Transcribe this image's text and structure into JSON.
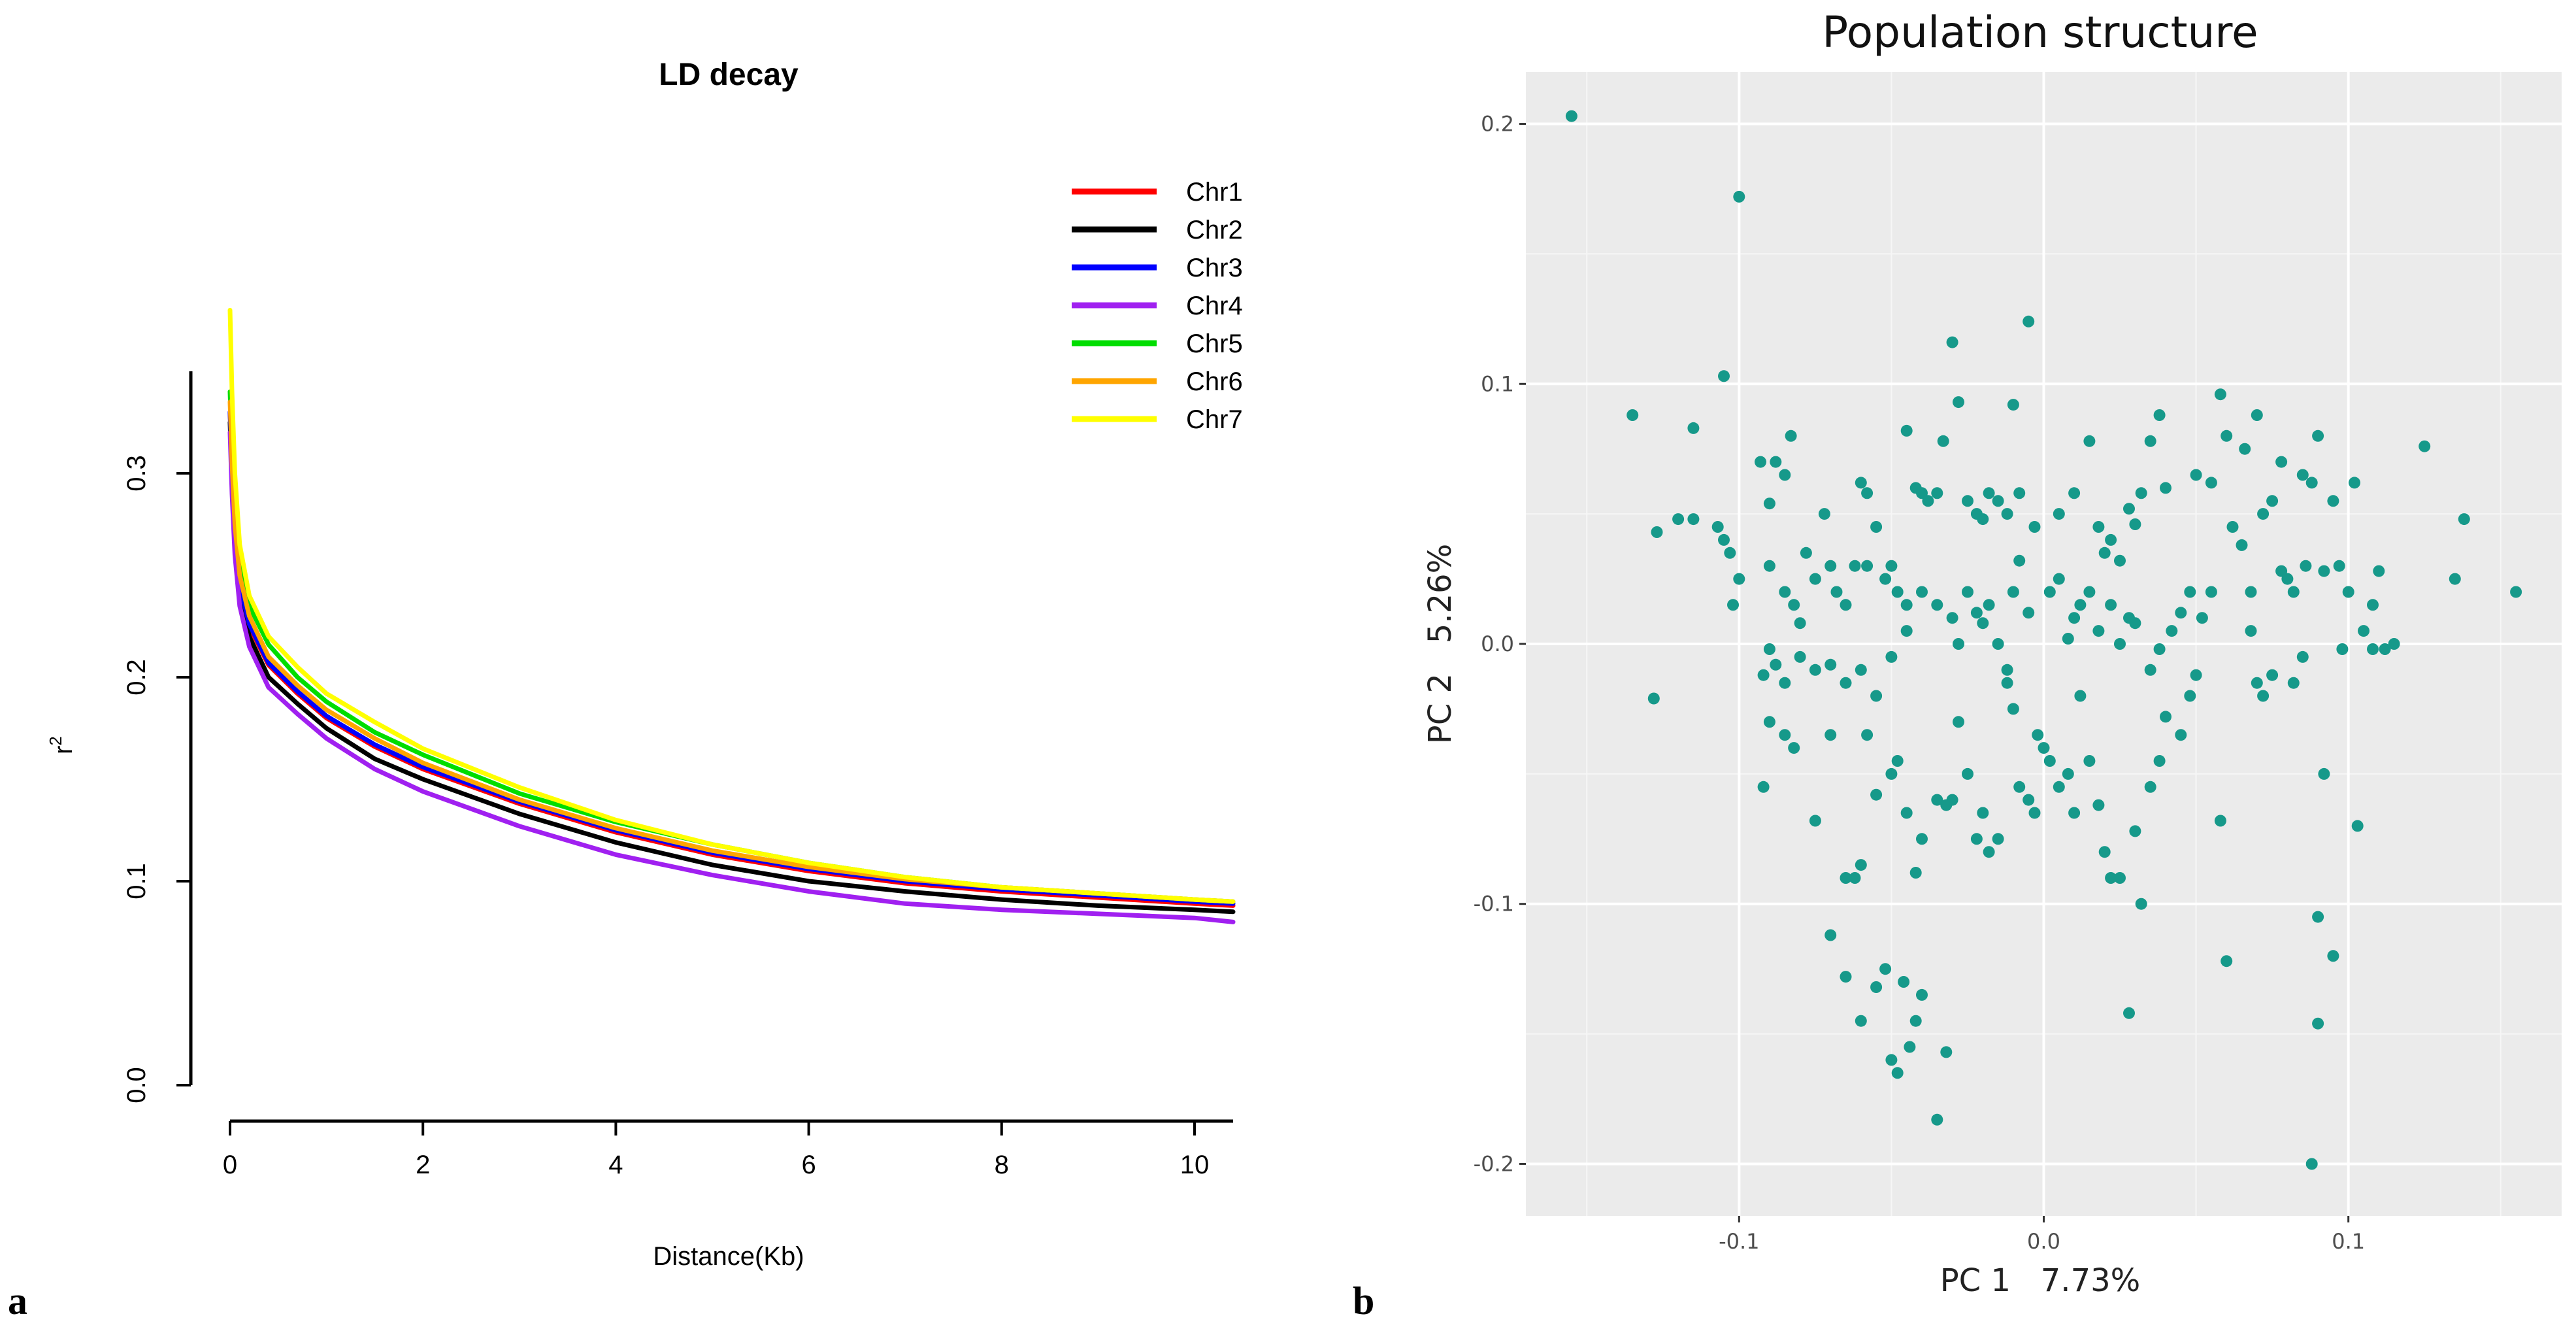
{
  "panel_labels": {
    "a": "a",
    "b": "b"
  },
  "chart_data": [
    {
      "type": "line",
      "title": "LD decay",
      "xlabel": "Distance(Kb)",
      "ylabel": "r",
      "ylabel_superscript": "2",
      "xlim": [
        0,
        10.4
      ],
      "ylim": [
        0,
        0.35
      ],
      "xticks": [
        0,
        2,
        4,
        6,
        8,
        10
      ],
      "xtick_labels": [
        "0",
        "2",
        "4",
        "6",
        "8",
        "10"
      ],
      "yticks": [
        0.0,
        0.1,
        0.2,
        0.3
      ],
      "ytick_labels": [
        "0.0",
        "0.1",
        "0.2",
        "0.3"
      ],
      "grid": false,
      "legend_position": "top-right",
      "x": [
        0,
        0.02,
        0.05,
        0.1,
        0.2,
        0.4,
        0.7,
        1,
        1.5,
        2,
        3,
        4,
        5,
        6,
        7,
        8,
        9,
        10,
        10.4
      ],
      "series": [
        {
          "name": "Chr1",
          "color": "#ff0000",
          "values": [
            0.33,
            0.3,
            0.27,
            0.245,
            0.225,
            0.206,
            0.192,
            0.18,
            0.166,
            0.155,
            0.138,
            0.124,
            0.113,
            0.105,
            0.099,
            0.095,
            0.092,
            0.089,
            0.088
          ]
        },
        {
          "name": "Chr2",
          "color": "#000000",
          "values": [
            0.325,
            0.295,
            0.265,
            0.24,
            0.22,
            0.2,
            0.187,
            0.175,
            0.16,
            0.15,
            0.133,
            0.119,
            0.108,
            0.1,
            0.095,
            0.091,
            0.088,
            0.086,
            0.085
          ]
        },
        {
          "name": "Chr3",
          "color": "#0000ff",
          "values": [
            0.33,
            0.3,
            0.27,
            0.245,
            0.226,
            0.207,
            0.193,
            0.181,
            0.167,
            0.156,
            0.139,
            0.125,
            0.114,
            0.106,
            0.1,
            0.096,
            0.093,
            0.09,
            0.089
          ]
        },
        {
          "name": "Chr4",
          "color": "#a020f0",
          "values": [
            0.32,
            0.29,
            0.26,
            0.235,
            0.215,
            0.195,
            0.182,
            0.17,
            0.155,
            0.144,
            0.127,
            0.113,
            0.103,
            0.095,
            0.089,
            0.086,
            0.084,
            0.082,
            0.08
          ]
        },
        {
          "name": "Chr5",
          "color": "#00dd00",
          "values": [
            0.34,
            0.31,
            0.28,
            0.255,
            0.235,
            0.216,
            0.2,
            0.188,
            0.173,
            0.162,
            0.143,
            0.129,
            0.118,
            0.109,
            0.102,
            0.097,
            0.094,
            0.091,
            0.09
          ]
        },
        {
          "name": "Chr6",
          "color": "#ffa500",
          "values": [
            0.335,
            0.305,
            0.275,
            0.25,
            0.23,
            0.21,
            0.196,
            0.184,
            0.17,
            0.158,
            0.14,
            0.126,
            0.115,
            0.107,
            0.101,
            0.097,
            0.094,
            0.091,
            0.09
          ]
        },
        {
          "name": "Chr7",
          "color": "#ffff00",
          "values": [
            0.38,
            0.34,
            0.3,
            0.265,
            0.24,
            0.22,
            0.205,
            0.192,
            0.178,
            0.165,
            0.146,
            0.13,
            0.118,
            0.109,
            0.102,
            0.097,
            0.094,
            0.091,
            0.09
          ]
        }
      ]
    },
    {
      "type": "scatter",
      "title": "Population structure",
      "xlabel": "PC 1   7.73%",
      "ylabel": "PC 2   5.26%",
      "xlim": [
        -0.17,
        0.17
      ],
      "ylim": [
        -0.22,
        0.22
      ],
      "xticks": [
        -0.1,
        0.0,
        0.1
      ],
      "xtick_labels": [
        "-0.1",
        "0.0",
        "0.1"
      ],
      "yticks": [
        -0.2,
        -0.1,
        0.0,
        0.1,
        0.2
      ],
      "ytick_labels": [
        "-0.2",
        "-0.1",
        "0.0",
        "0.1",
        "0.2"
      ],
      "grid": true,
      "point_color": "#16998a",
      "background": "#ebebeb",
      "points": [
        [
          -0.155,
          0.203
        ],
        [
          -0.1,
          0.172
        ],
        [
          -0.135,
          0.088
        ],
        [
          -0.115,
          0.083
        ],
        [
          -0.105,
          0.103
        ],
        [
          -0.127,
          0.043
        ],
        [
          -0.12,
          0.048
        ],
        [
          -0.115,
          0.048
        ],
        [
          -0.107,
          0.045
        ],
        [
          -0.105,
          0.04
        ],
        [
          -0.103,
          0.035
        ],
        [
          -0.102,
          0.015
        ],
        [
          -0.1,
          0.025
        ],
        [
          -0.128,
          -0.021
        ],
        [
          -0.093,
          0.07
        ],
        [
          -0.088,
          0.07
        ],
        [
          -0.085,
          0.065
        ],
        [
          -0.083,
          0.08
        ],
        [
          -0.09,
          0.054
        ],
        [
          -0.09,
          0.03
        ],
        [
          -0.085,
          0.02
        ],
        [
          -0.082,
          0.015
        ],
        [
          -0.08,
          0.008
        ],
        [
          -0.078,
          0.035
        ],
        [
          -0.075,
          0.025
        ],
        [
          -0.072,
          0.05
        ],
        [
          -0.07,
          0.03
        ],
        [
          -0.068,
          0.02
        ],
        [
          -0.065,
          0.015
        ],
        [
          -0.062,
          0.03
        ],
        [
          -0.06,
          0.062
        ],
        [
          -0.058,
          0.058
        ],
        [
          -0.055,
          0.045
        ],
        [
          -0.058,
          0.03
        ],
        [
          -0.052,
          0.025
        ],
        [
          -0.05,
          0.03
        ],
        [
          -0.048,
          0.02
        ],
        [
          -0.045,
          0.015
        ],
        [
          -0.09,
          -0.002
        ],
        [
          -0.092,
          -0.012
        ],
        [
          -0.088,
          -0.008
        ],
        [
          -0.085,
          -0.015
        ],
        [
          -0.08,
          -0.005
        ],
        [
          -0.075,
          -0.01
        ],
        [
          -0.07,
          -0.008
        ],
        [
          -0.065,
          -0.015
        ],
        [
          -0.06,
          -0.01
        ],
        [
          -0.055,
          -0.02
        ],
        [
          -0.05,
          -0.005
        ],
        [
          -0.045,
          0.005
        ],
        [
          -0.092,
          -0.055
        ],
        [
          -0.09,
          -0.03
        ],
        [
          -0.085,
          -0.035
        ],
        [
          -0.082,
          -0.04
        ],
        [
          -0.075,
          -0.068
        ],
        [
          -0.07,
          -0.035
        ],
        [
          -0.065,
          -0.09
        ],
        [
          -0.062,
          -0.09
        ],
        [
          -0.06,
          -0.085
        ],
        [
          -0.058,
          -0.035
        ],
        [
          -0.055,
          -0.058
        ],
        [
          -0.05,
          -0.05
        ],
        [
          -0.048,
          -0.045
        ],
        [
          -0.045,
          -0.065
        ],
        [
          -0.042,
          -0.088
        ],
        [
          -0.04,
          -0.075
        ],
        [
          -0.07,
          -0.112
        ],
        [
          -0.065,
          -0.128
        ],
        [
          -0.06,
          -0.145
        ],
        [
          -0.055,
          -0.132
        ],
        [
          -0.052,
          -0.125
        ],
        [
          -0.05,
          -0.16
        ],
        [
          -0.048,
          -0.165
        ],
        [
          -0.046,
          -0.13
        ],
        [
          -0.044,
          -0.155
        ],
        [
          -0.042,
          -0.145
        ],
        [
          -0.04,
          -0.135
        ],
        [
          -0.035,
          -0.183
        ],
        [
          -0.032,
          -0.157
        ],
        [
          -0.045,
          0.082
        ],
        [
          -0.042,
          0.06
        ],
        [
          -0.04,
          0.058
        ],
        [
          -0.038,
          0.055
        ],
        [
          -0.035,
          0.058
        ],
        [
          -0.033,
          0.078
        ],
        [
          -0.03,
          0.116
        ],
        [
          -0.028,
          0.093
        ],
        [
          -0.025,
          0.055
        ],
        [
          -0.022,
          0.05
        ],
        [
          -0.02,
          0.048
        ],
        [
          -0.018,
          0.058
        ],
        [
          -0.015,
          0.055
        ],
        [
          -0.012,
          0.05
        ],
        [
          -0.01,
          0.092
        ],
        [
          -0.008,
          0.058
        ],
        [
          -0.005,
          0.124
        ],
        [
          -0.003,
          0.045
        ],
        [
          -0.04,
          0.02
        ],
        [
          -0.035,
          0.015
        ],
        [
          -0.03,
          0.01
        ],
        [
          -0.028,
          0.0
        ],
        [
          -0.025,
          0.02
        ],
        [
          -0.022,
          0.012
        ],
        [
          -0.02,
          0.008
        ],
        [
          -0.018,
          0.015
        ],
        [
          -0.015,
          0.0
        ],
        [
          -0.012,
          -0.01
        ],
        [
          -0.01,
          0.02
        ],
        [
          -0.008,
          0.032
        ],
        [
          -0.035,
          -0.06
        ],
        [
          -0.032,
          -0.062
        ],
        [
          -0.03,
          -0.06
        ],
        [
          -0.028,
          -0.03
        ],
        [
          -0.025,
          -0.05
        ],
        [
          -0.022,
          -0.075
        ],
        [
          -0.02,
          -0.065
        ],
        [
          -0.018,
          -0.08
        ],
        [
          -0.015,
          -0.075
        ],
        [
          -0.012,
          -0.015
        ],
        [
          -0.01,
          -0.025
        ],
        [
          -0.008,
          -0.055
        ],
        [
          -0.005,
          -0.06
        ],
        [
          -0.003,
          -0.065
        ],
        [
          -0.002,
          -0.035
        ],
        [
          0.0,
          -0.04
        ],
        [
          0.002,
          -0.045
        ],
        [
          0.005,
          -0.055
        ],
        [
          0.008,
          -0.05
        ],
        [
          0.01,
          -0.065
        ],
        [
          -0.005,
          0.012
        ],
        [
          0.002,
          0.02
        ],
        [
          0.005,
          0.025
        ],
        [
          0.008,
          0.002
        ],
        [
          0.01,
          0.01
        ],
        [
          0.012,
          0.015
        ],
        [
          0.015,
          0.02
        ],
        [
          0.018,
          0.005
        ],
        [
          0.02,
          0.035
        ],
        [
          0.022,
          0.015
        ],
        [
          0.025,
          0.0
        ],
        [
          0.028,
          0.01
        ],
        [
          0.03,
          0.008
        ],
        [
          0.005,
          0.05
        ],
        [
          0.01,
          0.058
        ],
        [
          0.015,
          0.078
        ],
        [
          0.018,
          0.045
        ],
        [
          0.022,
          0.04
        ],
        [
          0.025,
          0.032
        ],
        [
          0.028,
          0.052
        ],
        [
          0.03,
          0.046
        ],
        [
          0.032,
          0.058
        ],
        [
          0.035,
          0.078
        ],
        [
          0.038,
          0.088
        ],
        [
          0.04,
          0.06
        ],
        [
          0.012,
          -0.02
        ],
        [
          0.015,
          -0.045
        ],
        [
          0.018,
          -0.062
        ],
        [
          0.02,
          -0.08
        ],
        [
          0.022,
          -0.09
        ],
        [
          0.025,
          -0.09
        ],
        [
          0.028,
          -0.142
        ],
        [
          0.03,
          -0.072
        ],
        [
          0.032,
          -0.1
        ],
        [
          0.035,
          -0.055
        ],
        [
          0.038,
          -0.045
        ],
        [
          0.04,
          -0.028
        ],
        [
          0.045,
          -0.035
        ],
        [
          0.048,
          -0.02
        ],
        [
          0.05,
          -0.012
        ],
        [
          0.052,
          0.01
        ],
        [
          0.055,
          0.02
        ],
        [
          0.035,
          -0.01
        ],
        [
          0.038,
          -0.002
        ],
        [
          0.042,
          0.005
        ],
        [
          0.045,
          0.012
        ],
        [
          0.048,
          0.02
        ],
        [
          0.05,
          0.065
        ],
        [
          0.055,
          0.062
        ],
        [
          0.058,
          0.096
        ],
        [
          0.06,
          0.08
        ],
        [
          0.062,
          0.045
        ],
        [
          0.065,
          0.038
        ],
        [
          0.066,
          0.075
        ],
        [
          0.068,
          0.02
        ],
        [
          0.07,
          0.088
        ],
        [
          0.072,
          0.05
        ],
        [
          0.075,
          0.055
        ],
        [
          0.078,
          0.07
        ],
        [
          0.058,
          -0.068
        ],
        [
          0.06,
          -0.122
        ],
        [
          0.068,
          0.005
        ],
        [
          0.07,
          -0.015
        ],
        [
          0.072,
          -0.02
        ],
        [
          0.075,
          -0.012
        ],
        [
          0.078,
          0.028
        ],
        [
          0.08,
          0.025
        ],
        [
          0.082,
          0.02
        ],
        [
          0.085,
          0.065
        ],
        [
          0.086,
          0.03
        ],
        [
          0.088,
          0.062
        ],
        [
          0.09,
          0.08
        ],
        [
          0.092,
          0.028
        ],
        [
          0.095,
          0.055
        ],
        [
          0.097,
          0.03
        ],
        [
          0.085,
          -0.005
        ],
        [
          0.082,
          -0.015
        ],
        [
          0.088,
          -0.2
        ],
        [
          0.09,
          -0.105
        ],
        [
          0.092,
          -0.05
        ],
        [
          0.095,
          -0.12
        ],
        [
          0.09,
          -0.146
        ],
        [
          0.1,
          0.02
        ],
        [
          0.102,
          0.062
        ],
        [
          0.105,
          0.005
        ],
        [
          0.108,
          0.015
        ],
        [
          0.11,
          0.028
        ],
        [
          0.108,
          -0.002
        ],
        [
          0.112,
          -0.002
        ],
        [
          0.103,
          -0.07
        ],
        [
          0.098,
          -0.002
        ],
        [
          0.115,
          0.0
        ],
        [
          0.125,
          0.076
        ],
        [
          0.135,
          0.025
        ],
        [
          0.138,
          0.048
        ],
        [
          0.155,
          0.02
        ]
      ]
    }
  ]
}
